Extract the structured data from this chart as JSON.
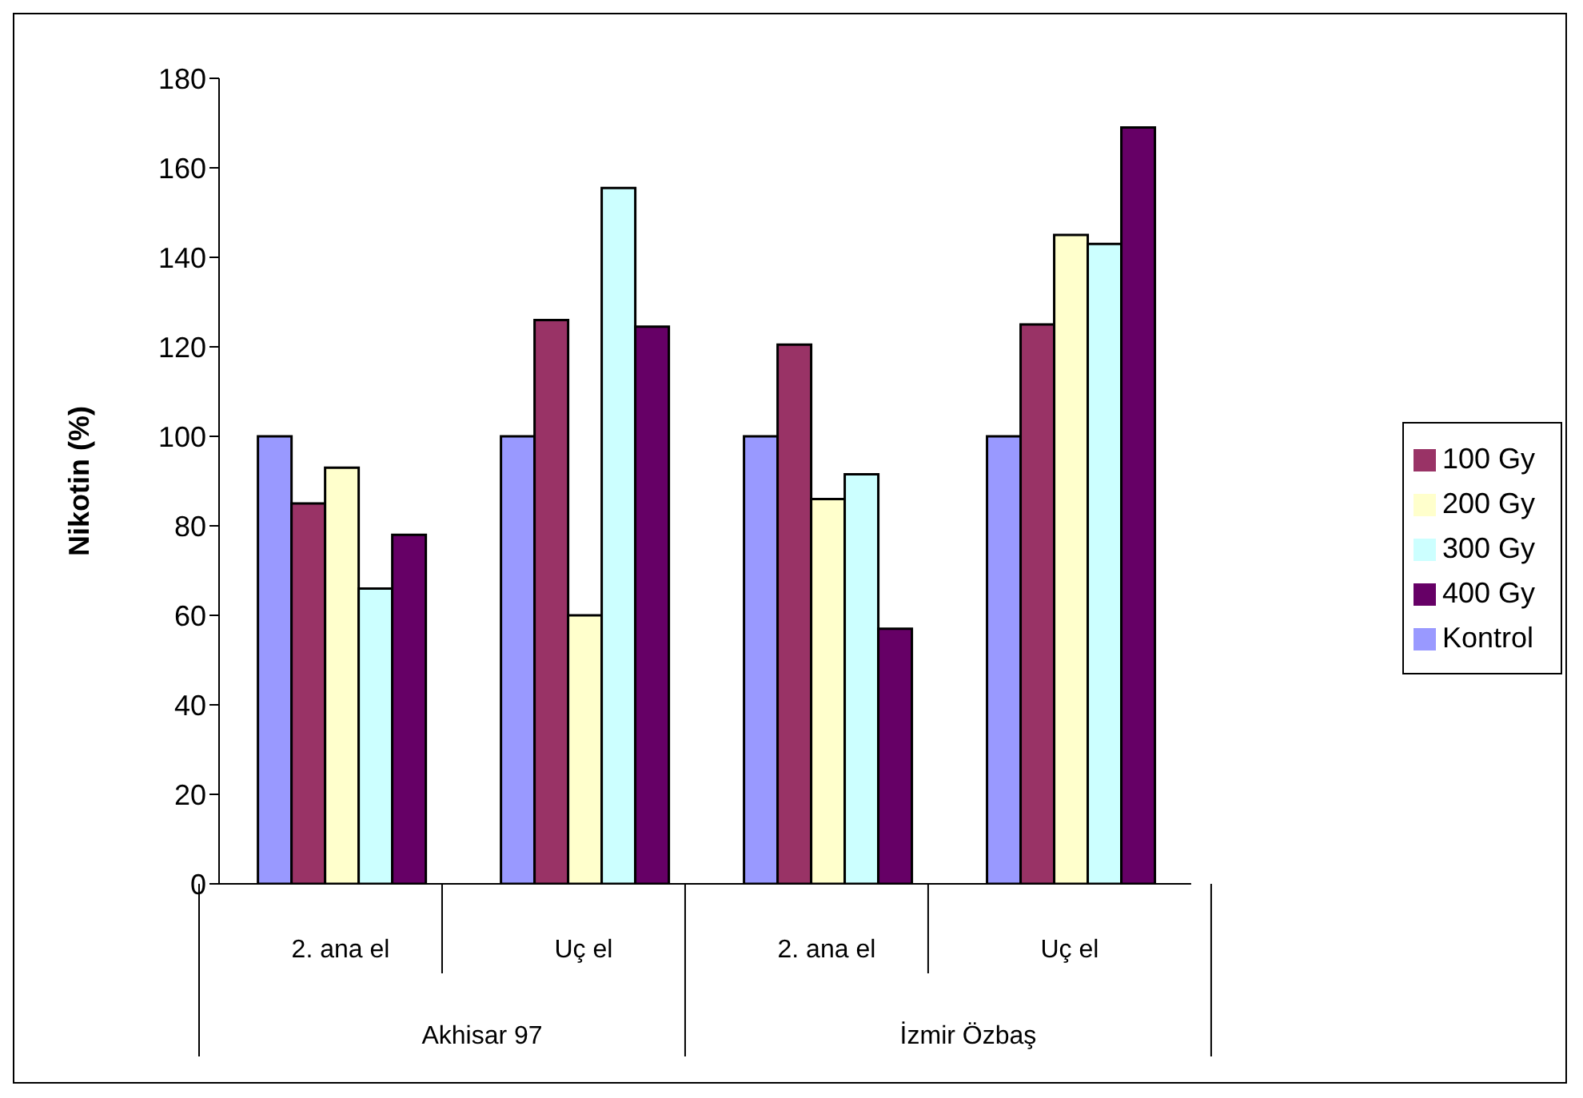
{
  "chart_data": {
    "type": "bar",
    "ylabel": "Nikotin (%)",
    "categories": [
      "2. ana el",
      "Uç el",
      "2. ana el",
      "Uç el"
    ],
    "annotations": [
      "Akhisar 97",
      "İzmir Özbaş"
    ],
    "series": [
      {
        "name": "Kontrol",
        "color": "#9999ff",
        "values": [
          100,
          100,
          100,
          100
        ]
      },
      {
        "name": "100 Gy",
        "color": "#993366",
        "values": [
          85,
          126,
          120.5,
          125
        ]
      },
      {
        "name": "200 Gy",
        "color": "#ffffcc",
        "values": [
          93,
          60,
          86,
          145
        ]
      },
      {
        "name": "300 Gy",
        "color": "#ccffff",
        "values": [
          66,
          155.5,
          91.5,
          143
        ]
      },
      {
        "name": "400 Gy",
        "color": "#660066",
        "values": [
          78,
          124.5,
          57,
          169
        ]
      }
    ],
    "ylim": [
      0,
      180
    ],
    "yticks": [
      0,
      20,
      40,
      60,
      80,
      100,
      120,
      140,
      160,
      180
    ],
    "grid": false,
    "legend": "right"
  }
}
